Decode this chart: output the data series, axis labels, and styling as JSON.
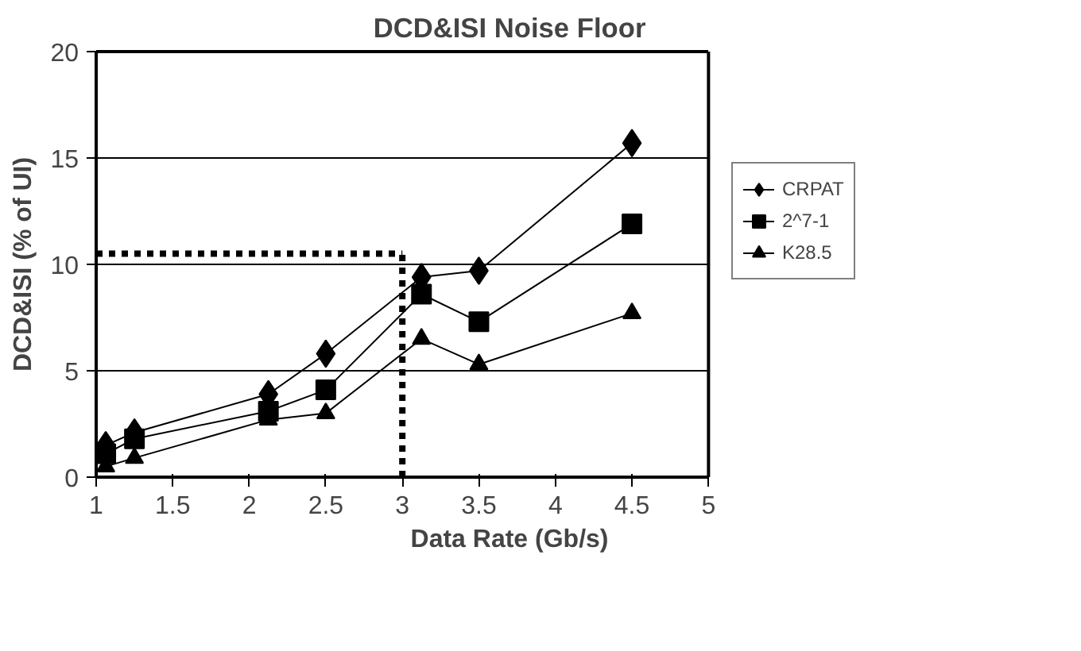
{
  "chart_data": {
    "type": "line",
    "title": "DCD&ISI Noise Floor",
    "xlabel": "Data Rate (Gb/s)",
    "ylabel": "DCD&ISI (% of UI)",
    "x": [
      1.0625,
      1.25,
      2.125,
      2.5,
      3.125,
      3.5,
      4.5
    ],
    "series": [
      {
        "name": "CRPAT",
        "color": "#000000",
        "marker": "diamond",
        "values": [
          1.5,
          2.1,
          3.9,
          5.8,
          9.4,
          9.7,
          15.7
        ]
      },
      {
        "name": "2^7-1",
        "color": "#000000",
        "marker": "square",
        "values": [
          1.1,
          1.8,
          3.1,
          4.1,
          8.6,
          7.3,
          11.9
        ]
      },
      {
        "name": "K28.5",
        "color": "#000000",
        "marker": "triangle",
        "values": [
          0.5,
          0.9,
          2.7,
          3.0,
          6.5,
          5.3,
          7.7
        ]
      }
    ],
    "xlim": [
      1,
      5
    ],
    "xticks": [
      1,
      1.5,
      2,
      2.5,
      3,
      3.5,
      4,
      4.5,
      5
    ],
    "ylim": [
      0,
      20
    ],
    "yticks": [
      0,
      5,
      10,
      15,
      20
    ],
    "grid": "y",
    "legend": "right",
    "line_style": "solid",
    "ref_lines": [
      {
        "axis": "y",
        "value": 10.5,
        "color": "#000000",
        "line_style": "dotted"
      },
      {
        "axis": "x",
        "value": 3,
        "color": "#000000",
        "line_style": "dotted"
      }
    ]
  }
}
